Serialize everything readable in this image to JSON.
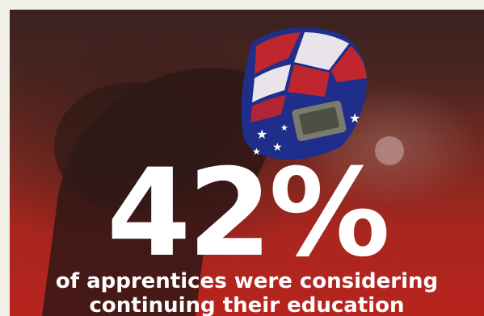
{
  "stat": {
    "value": "42%",
    "caption_line1": "of apprentices were considering",
    "caption_line2": "continuing their education"
  },
  "colors": {
    "background_top": "#3a2220",
    "background_bottom": "#b8241d",
    "text": "#ffffff",
    "helmet_blue": "#1f2e8a",
    "helmet_red": "#c0262d"
  },
  "image": {
    "subject": "welder-with-flag-helmet"
  }
}
